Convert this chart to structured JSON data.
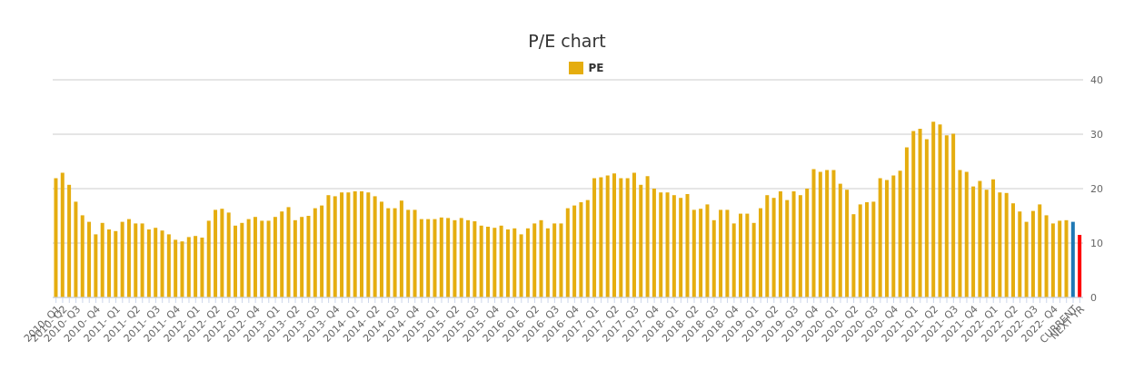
{
  "chart_data": {
    "type": "bar",
    "title": "P/E chart",
    "categories": [
      "2010- Q1",
      "2010- Q2",
      null,
      "2010- Q3",
      null,
      null,
      "2010- Q4",
      null,
      null,
      "2011- Q1",
      null,
      null,
      "2011- Q2",
      null,
      null,
      "2011- Q3",
      null,
      null,
      "2011- Q4",
      null,
      null,
      "2012- Q1",
      null,
      null,
      "2012- Q2",
      null,
      null,
      "2012- Q3",
      null,
      null,
      "2012- Q4",
      null,
      null,
      "2013- Q1",
      null,
      null,
      "2013- Q2",
      null,
      null,
      "2013- Q3",
      null,
      null,
      "2013- Q4",
      null,
      null,
      "2014- Q1",
      null,
      null,
      "2014- Q2",
      null,
      null,
      "2014- Q3",
      null,
      null,
      "2014- Q4",
      null,
      null,
      "2015- Q1",
      null,
      null,
      "2015- Q2",
      null,
      null,
      "2015- Q3",
      null,
      null,
      "2015- Q4",
      null,
      null,
      "2016- Q1",
      null,
      null,
      "2016- Q2",
      null,
      null,
      "2016- Q3",
      null,
      null,
      "2016- Q4",
      null,
      null,
      "2017- Q1",
      null,
      null,
      "2017- Q2",
      null,
      null,
      "2017- Q3",
      null,
      null,
      "2017- Q4",
      null,
      null,
      "2018- Q1",
      null,
      null,
      "2018- Q2",
      null,
      null,
      "2018- Q3",
      null,
      null,
      "2018- Q4",
      null,
      null,
      "2019- Q1",
      null,
      null,
      "2019- Q2",
      null,
      null,
      "2019- Q3",
      null,
      null,
      "2019- Q4",
      null,
      null,
      "2020- Q1",
      null,
      null,
      "2020- Q2",
      null,
      null,
      "2020- Q3",
      null,
      null,
      "2020- Q4",
      null,
      null,
      "2021- Q1",
      null,
      null,
      "2021- Q2",
      null,
      null,
      "2021- Q3",
      null,
      null,
      "2021- Q4",
      null,
      null,
      "2022- Q1",
      null,
      null,
      "2022- Q2",
      null,
      null,
      "2022- Q3",
      null,
      null,
      "2022- Q4",
      null,
      null,
      "CURRENT",
      "NEXT YR"
    ],
    "series": [
      {
        "name": "PE",
        "color": "#e5ad0f",
        "values": [
          21.9,
          22.9,
          20.7,
          17.6,
          15.1,
          13.9,
          11.6,
          13.7,
          12.5,
          12.2,
          13.9,
          14.4,
          13.6,
          13.6,
          12.5,
          12.8,
          12.3,
          11.6,
          10.6,
          10.3,
          11.1,
          11.3,
          11.0,
          14.1,
          16.1,
          16.3,
          15.6,
          13.2,
          13.7,
          14.4,
          14.8,
          14.1,
          14.1,
          14.8,
          15.8,
          16.6,
          14.2,
          14.8,
          15.0,
          16.4,
          16.9,
          18.8,
          18.6,
          19.3,
          19.3,
          19.5,
          19.5,
          19.3,
          18.6,
          17.6,
          16.4,
          16.4,
          17.8,
          16.1,
          16.1,
          14.4,
          14.4,
          14.4,
          14.7,
          14.6,
          14.2,
          14.6,
          14.2,
          14.0,
          13.2,
          13.0,
          12.8,
          13.2,
          12.5,
          12.7,
          11.6,
          12.7,
          13.6,
          14.2,
          12.7,
          13.6,
          13.6,
          16.4,
          16.9,
          17.5,
          17.9,
          21.9,
          22.1,
          22.4,
          22.8,
          21.9,
          21.9,
          22.9,
          20.7,
          22.3,
          20.0,
          19.3,
          19.3,
          18.8,
          18.3,
          19.0,
          16.1,
          16.3,
          17.1,
          14.2,
          16.1,
          16.1,
          13.6,
          15.4,
          15.4,
          13.7,
          16.4,
          18.8,
          18.3,
          19.5,
          17.9,
          19.5,
          18.8,
          20.0,
          23.6,
          23.1,
          23.4,
          23.4,
          20.9,
          19.8,
          15.3,
          17.1,
          17.5,
          17.6,
          21.9,
          21.6,
          22.4,
          23.3,
          27.6,
          30.6,
          31.0,
          29.1,
          32.3,
          31.8,
          29.8,
          30.1,
          23.4,
          23.1,
          20.4,
          21.4,
          19.8,
          21.7,
          19.3,
          19.2,
          17.3,
          15.8,
          13.9,
          15.9,
          17.1,
          15.1,
          13.6,
          14.1,
          14.2,
          13.9,
          11.5
        ],
        "colors": [
          "#e5ad0f",
          "#e5ad0f",
          "#e5ad0f",
          "#e5ad0f",
          "#e5ad0f",
          "#e5ad0f",
          "#e5ad0f",
          "#e5ad0f",
          "#e5ad0f",
          "#e5ad0f",
          "#e5ad0f",
          "#e5ad0f",
          "#e5ad0f",
          "#e5ad0f",
          "#e5ad0f",
          "#e5ad0f",
          "#e5ad0f",
          "#e5ad0f",
          "#e5ad0f",
          "#e5ad0f",
          "#e5ad0f",
          "#e5ad0f",
          "#e5ad0f",
          "#e5ad0f",
          "#e5ad0f",
          "#e5ad0f",
          "#e5ad0f",
          "#e5ad0f",
          "#e5ad0f",
          "#e5ad0f",
          "#e5ad0f",
          "#e5ad0f",
          "#e5ad0f",
          "#e5ad0f",
          "#e5ad0f",
          "#e5ad0f",
          "#e5ad0f",
          "#e5ad0f",
          "#e5ad0f",
          "#e5ad0f",
          "#e5ad0f",
          "#e5ad0f",
          "#e5ad0f",
          "#e5ad0f",
          "#e5ad0f",
          "#e5ad0f",
          "#e5ad0f",
          "#e5ad0f",
          "#e5ad0f",
          "#e5ad0f",
          "#e5ad0f",
          "#e5ad0f",
          "#e5ad0f",
          "#e5ad0f",
          "#e5ad0f",
          "#e5ad0f",
          "#e5ad0f",
          "#e5ad0f",
          "#e5ad0f",
          "#e5ad0f",
          "#e5ad0f",
          "#e5ad0f",
          "#e5ad0f",
          "#e5ad0f",
          "#e5ad0f",
          "#e5ad0f",
          "#e5ad0f",
          "#e5ad0f",
          "#e5ad0f",
          "#e5ad0f",
          "#e5ad0f",
          "#e5ad0f",
          "#e5ad0f",
          "#e5ad0f",
          "#e5ad0f",
          "#e5ad0f",
          "#e5ad0f",
          "#e5ad0f",
          "#e5ad0f",
          "#e5ad0f",
          "#e5ad0f",
          "#e5ad0f",
          "#e5ad0f",
          "#e5ad0f",
          "#e5ad0f",
          "#e5ad0f",
          "#e5ad0f",
          "#e5ad0f",
          "#e5ad0f",
          "#e5ad0f",
          "#e5ad0f",
          "#e5ad0f",
          "#e5ad0f",
          "#e5ad0f",
          "#e5ad0f",
          "#e5ad0f",
          "#e5ad0f",
          "#e5ad0f",
          "#e5ad0f",
          "#e5ad0f",
          "#e5ad0f",
          "#e5ad0f",
          "#e5ad0f",
          "#e5ad0f",
          "#e5ad0f",
          "#e5ad0f",
          "#e5ad0f",
          "#e5ad0f",
          "#e5ad0f",
          "#e5ad0f",
          "#e5ad0f",
          "#e5ad0f",
          "#e5ad0f",
          "#e5ad0f",
          "#e5ad0f",
          "#e5ad0f",
          "#e5ad0f",
          "#e5ad0f",
          "#e5ad0f",
          "#e5ad0f",
          "#e5ad0f",
          "#e5ad0f",
          "#e5ad0f",
          "#e5ad0f",
          "#e5ad0f",
          "#e5ad0f",
          "#e5ad0f",
          "#e5ad0f",
          "#e5ad0f",
          "#e5ad0f",
          "#e5ad0f",
          "#e5ad0f",
          "#e5ad0f",
          "#e5ad0f",
          "#e5ad0f",
          "#e5ad0f",
          "#e5ad0f",
          "#e5ad0f",
          "#e5ad0f",
          "#e5ad0f",
          "#e5ad0f",
          "#e5ad0f",
          "#e5ad0f",
          "#e5ad0f",
          "#e5ad0f",
          "#e5ad0f",
          "#e5ad0f",
          "#e5ad0f",
          "#e5ad0f",
          "#e5ad0f",
          "#e5ad0f",
          "#e5ad0f",
          "#e5ad0f",
          "#1f78b4",
          "#ff0000"
        ]
      }
    ],
    "ylim": [
      0,
      40
    ],
    "yticks": [
      0,
      10,
      20,
      30,
      40
    ],
    "grid": "y",
    "legend": "top"
  }
}
